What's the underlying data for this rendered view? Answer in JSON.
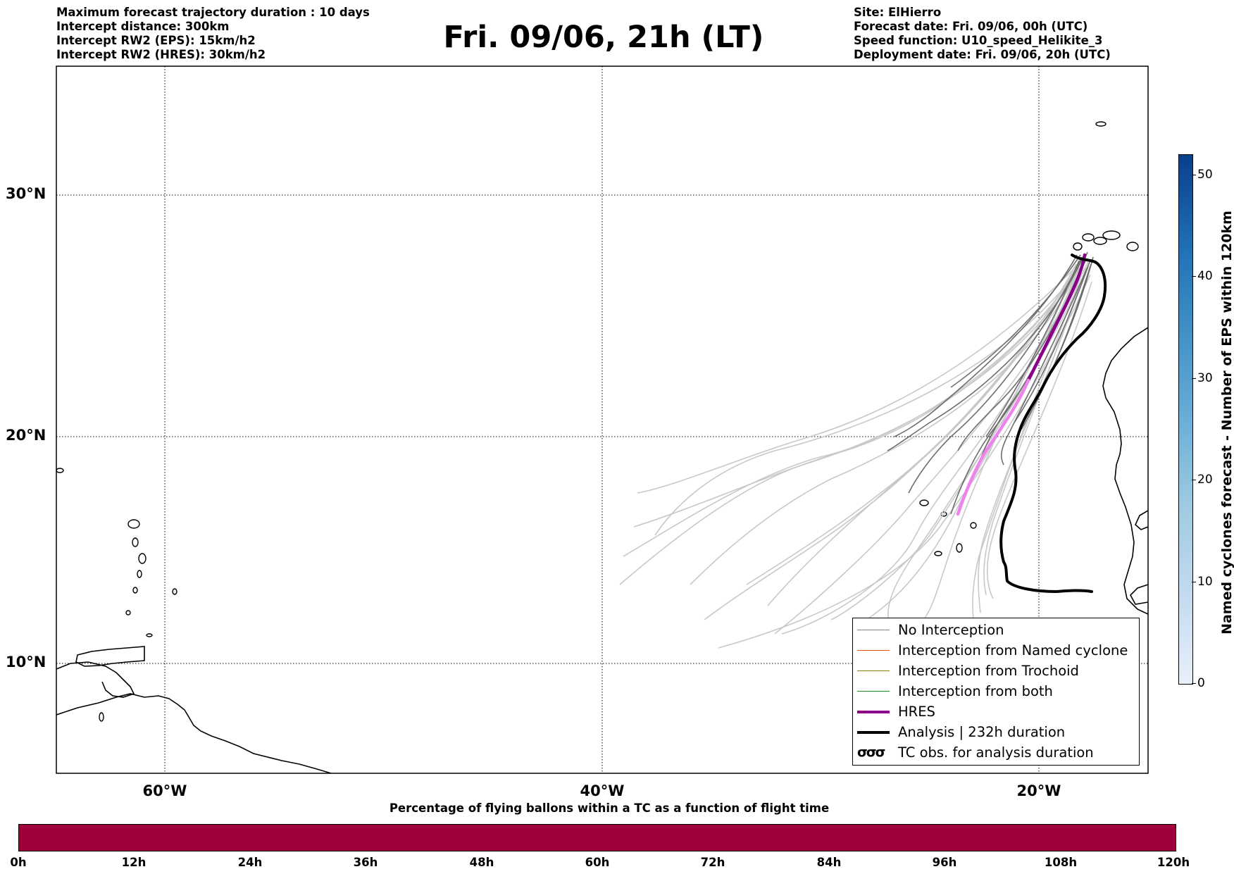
{
  "header": {
    "left": [
      "Maximum forecast trajectory duration : 10 days",
      "Intercept distance: 300km",
      "Intercept RW2 (EPS):  15km/h2",
      "Intercept RW2 (HRES): 30km/h2"
    ],
    "title": "Fri. 09/06, 21h (LT)",
    "right": [
      "Site: ElHierro",
      "Forecast date: Fri. 09/06, 00h (UTC)",
      "Speed function: U10_speed_Helikite_3",
      "Deployment date: Fri. 09/06, 20h (UTC)"
    ]
  },
  "map": {
    "lat_labels": [
      "30°N",
      "20°N",
      "10°N"
    ],
    "lon_labels": [
      "60°W",
      "40°W",
      "20°W"
    ],
    "site": "ElHierro"
  },
  "legend": {
    "items": [
      {
        "label": "No Interception",
        "color": "#7f7f7f"
      },
      {
        "label": "Interception from Named cyclone",
        "color": "#e8501c"
      },
      {
        "label": "Interception from Trochoid",
        "color": "#808000"
      },
      {
        "label": "Interception from both",
        "color": "#1a8a1a"
      },
      {
        "label": "HRES",
        "color": "#8b008b"
      },
      {
        "label": "Analysis | 232h duration",
        "color": "#000000"
      },
      {
        "label": "TC obs. for analysis duration",
        "symbol": "σσσ"
      }
    ]
  },
  "colorbar_vertical": {
    "title": "Named cyclones forecast - Number of EPS within 120km",
    "ticks": [
      "0",
      "10",
      "20",
      "30",
      "40",
      "50"
    ]
  },
  "colorbar_horizontal": {
    "title": "Percentage of flying ballons within a TC as a function of flight time",
    "ticks": [
      "0h",
      "12h",
      "24h",
      "36h",
      "48h",
      "60h",
      "72h",
      "84h",
      "96h",
      "108h",
      "120h"
    ],
    "fill_color": "#a0003c"
  }
}
